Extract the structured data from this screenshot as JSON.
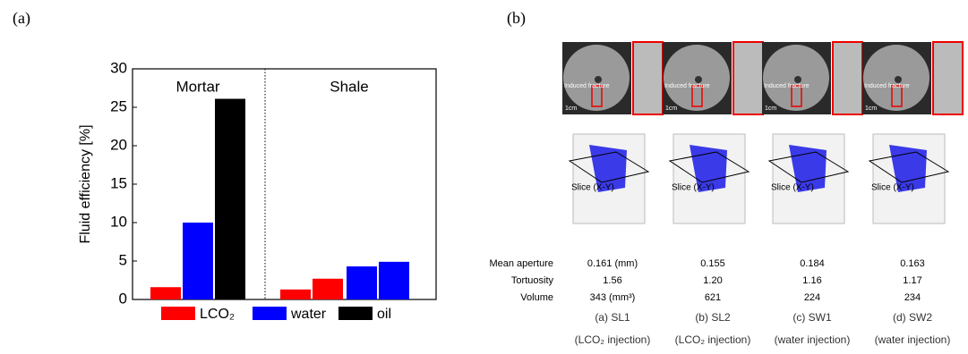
{
  "panel_labels": [
    "(a)",
    "(b)"
  ],
  "chart_data": {
    "type": "bar",
    "ylabel": "Fluid efficiency [%]",
    "categories": [
      null,
      null,
      null,
      null,
      null,
      null,
      null
    ],
    "series": [
      {
        "name": "LCO₂",
        "color": "#ff0000",
        "values": [
          1.6,
          null,
          null,
          1.3,
          2.7,
          null,
          null
        ]
      },
      {
        "name": "water",
        "color": "#0000ff",
        "values": [
          null,
          10,
          null,
          null,
          null,
          4.3,
          4.9
        ]
      },
      {
        "name": "oil",
        "color": "#000000",
        "values": [
          null,
          null,
          26.1,
          null,
          null,
          null,
          null
        ]
      }
    ],
    "annotations": [
      "Mortar",
      "Shale"
    ],
    "ylim": [
      0,
      30
    ],
    "yticks": [
      0,
      5,
      10,
      15,
      20,
      25,
      30
    ]
  },
  "panel_b": {
    "image_labels": {
      "fracture": "Induced fracture",
      "scale": "1cm",
      "slice": "Slice (X-Y)"
    },
    "row_labels": [
      "Mean aperture",
      "Tortuosity",
      "Volume"
    ],
    "columns": [
      {
        "values": [
          "0.161 (mm)",
          "1.56",
          "343 (mm³)"
        ],
        "caption": "(a) SL1",
        "note": "(LCO₂ injection)"
      },
      {
        "values": [
          "0.155",
          "1.20",
          "621"
        ],
        "caption": "(b) SL2",
        "note": "(LCO₂ injection)"
      },
      {
        "values": [
          "0.184",
          "1.16",
          "224"
        ],
        "caption": "(c) SW1",
        "note": "(water injection)"
      },
      {
        "values": [
          "0.163",
          "1.17",
          "234"
        ],
        "caption": "(d) SW2",
        "note": "(water injection)"
      }
    ]
  }
}
